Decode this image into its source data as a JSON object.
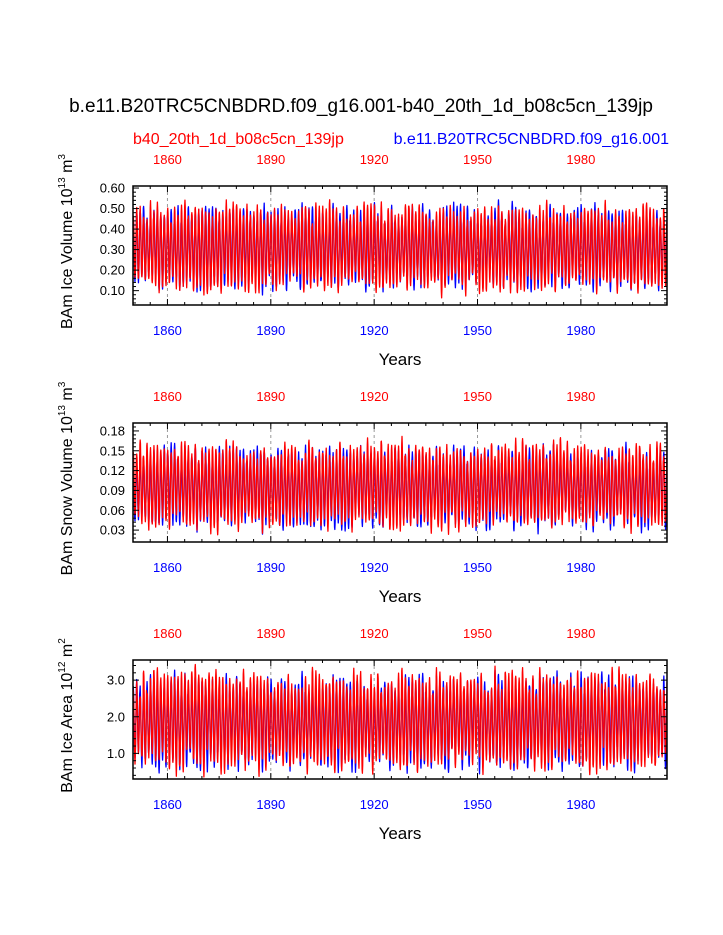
{
  "title": "b.e11.B20TRC5CNBDRD.f09_g16.001-b40_20th_1d_b08c5cn_139jp",
  "legend": {
    "left_label": "b40_20th_1d_b08c5cn_139jp",
    "right_label": "b.e11.B20TRC5CNBDRD.f09_g16.001"
  },
  "colors": {
    "series_a": "#ff0000",
    "series_b": "#0000ff",
    "axis": "#000000",
    "grid": "#9a9a9a"
  },
  "chart_data": [
    {
      "type": "line",
      "name": "ice-volume",
      "ylabel": "BAm Ice Volume 10",
      "ylabel_exp": "13",
      "ylabel_unit": " m",
      "ylabel_unit_exp": "3",
      "xlabel": "Years",
      "xlim": [
        1850,
        2005
      ],
      "ylim": [
        0.03,
        0.61
      ],
      "yticks": [
        0.1,
        0.2,
        0.3,
        0.4,
        0.5,
        0.6
      ],
      "yticklabels": [
        "0.10",
        "0.20",
        "0.30",
        "0.40",
        "0.50",
        "0.60"
      ],
      "xticks": [
        1860,
        1890,
        1920,
        1950,
        1980
      ],
      "xticklabels": [
        "1860",
        "1890",
        "1920",
        "1950",
        "1980"
      ],
      "series": [
        {
          "name": "b.e11.B20TRC5CNBDRD.f09_g16.001",
          "color": "#0000ff",
          "mean": 0.31,
          "amplitude": 0.18,
          "min": 0.05,
          "max": 0.57,
          "seed": 11
        },
        {
          "name": "b40_20th_1d_b08c5cn_139jp",
          "color": "#ff0000",
          "mean": 0.31,
          "amplitude": 0.19,
          "min": 0.05,
          "max": 0.61,
          "seed": 37
        }
      ]
    },
    {
      "type": "line",
      "name": "snow-volume",
      "ylabel": "BAm Snow Volume 10",
      "ylabel_exp": "13",
      "ylabel_unit": " m",
      "ylabel_unit_exp": "3",
      "xlabel": "Years",
      "xlim": [
        1850,
        2005
      ],
      "ylim": [
        0.012,
        0.192
      ],
      "yticks": [
        0.03,
        0.06,
        0.09,
        0.12,
        0.15,
        0.18
      ],
      "yticklabels": [
        "0.03",
        "0.06",
        "0.09",
        "0.12",
        "0.15",
        "0.18"
      ],
      "xticks": [
        1860,
        1890,
        1920,
        1950,
        1980
      ],
      "xticklabels": [
        "1860",
        "1890",
        "1920",
        "1950",
        "1980"
      ],
      "series": [
        {
          "name": "b.e11.B20TRC5CNBDRD.f09_g16.001",
          "color": "#0000ff",
          "mean": 0.095,
          "amplitude": 0.055,
          "min": 0.015,
          "max": 0.185,
          "seed": 53
        },
        {
          "name": "b40_20th_1d_b08c5cn_139jp",
          "color": "#ff0000",
          "mean": 0.097,
          "amplitude": 0.058,
          "min": 0.015,
          "max": 0.192,
          "seed": 71
        }
      ]
    },
    {
      "type": "line",
      "name": "ice-area",
      "ylabel": "BAm Ice Area 10",
      "ylabel_exp": "12",
      "ylabel_unit": " m",
      "ylabel_unit_exp": "2",
      "xlabel": "Years",
      "xlim": [
        1850,
        2005
      ],
      "ylim": [
        0.3,
        3.55
      ],
      "yticks": [
        1.0,
        2.0,
        3.0
      ],
      "yticklabels": [
        "1.0",
        "2.0",
        "3.0"
      ],
      "xticks": [
        1860,
        1890,
        1920,
        1950,
        1980
      ],
      "xticklabels": [
        "1860",
        "1890",
        "1920",
        "1950",
        "1980"
      ],
      "series": [
        {
          "name": "b.e11.B20TRC5CNBDRD.f09_g16.001",
          "color": "#0000ff",
          "mean": 1.85,
          "amplitude": 1.15,
          "min": 0.4,
          "max": 3.3,
          "seed": 89
        },
        {
          "name": "b40_20th_1d_b08c5cn_139jp",
          "color": "#ff0000",
          "mean": 1.9,
          "amplitude": 1.2,
          "min": 0.35,
          "max": 3.5,
          "seed": 97
        }
      ]
    }
  ]
}
